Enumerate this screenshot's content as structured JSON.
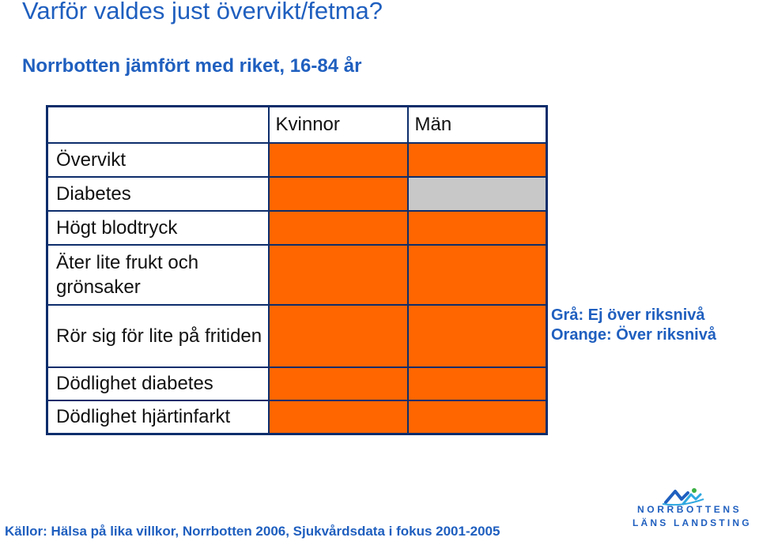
{
  "title": "Varför valdes just övervikt/fetma?",
  "subtitle": "Norrbotten jämfört med riket, 16-84 år",
  "table": {
    "columns": [
      "Kvinnor",
      "Män"
    ],
    "rows": [
      {
        "label": "Övervikt",
        "kvinnor": "orange",
        "man": "orange"
      },
      {
        "label": "Diabetes",
        "kvinnor": "orange",
        "man": "gray"
      },
      {
        "label": "Högt blodtryck",
        "kvinnor": "orange",
        "man": "orange"
      },
      {
        "label": "Äter lite frukt och grönsaker",
        "kvinnor": "orange",
        "man": "orange"
      },
      {
        "label": "Rör sig för lite på fritiden",
        "kvinnor": "orange",
        "man": "orange"
      },
      {
        "label": "Dödlighet diabetes",
        "kvinnor": "orange",
        "man": "orange"
      },
      {
        "label": "Dödlighet hjärtinfarkt",
        "kvinnor": "orange",
        "man": "orange"
      }
    ]
  },
  "legend": {
    "gray": "Grå: Ej över riksnivå",
    "orange": "Orange: Över riksnivå"
  },
  "colors": {
    "orange": "#ff6600",
    "gray": "#c8c8c8",
    "accent": "#1f5fbf",
    "border": "#0d2d6b"
  },
  "footer": "Källor: Hälsa på lika villkor, Norrbotten 2006, Sjukvårdsdata i fokus 2001-2005",
  "logo": {
    "line1": "NORRBOTTENS",
    "line2": "LÄNS LANDSTING"
  }
}
